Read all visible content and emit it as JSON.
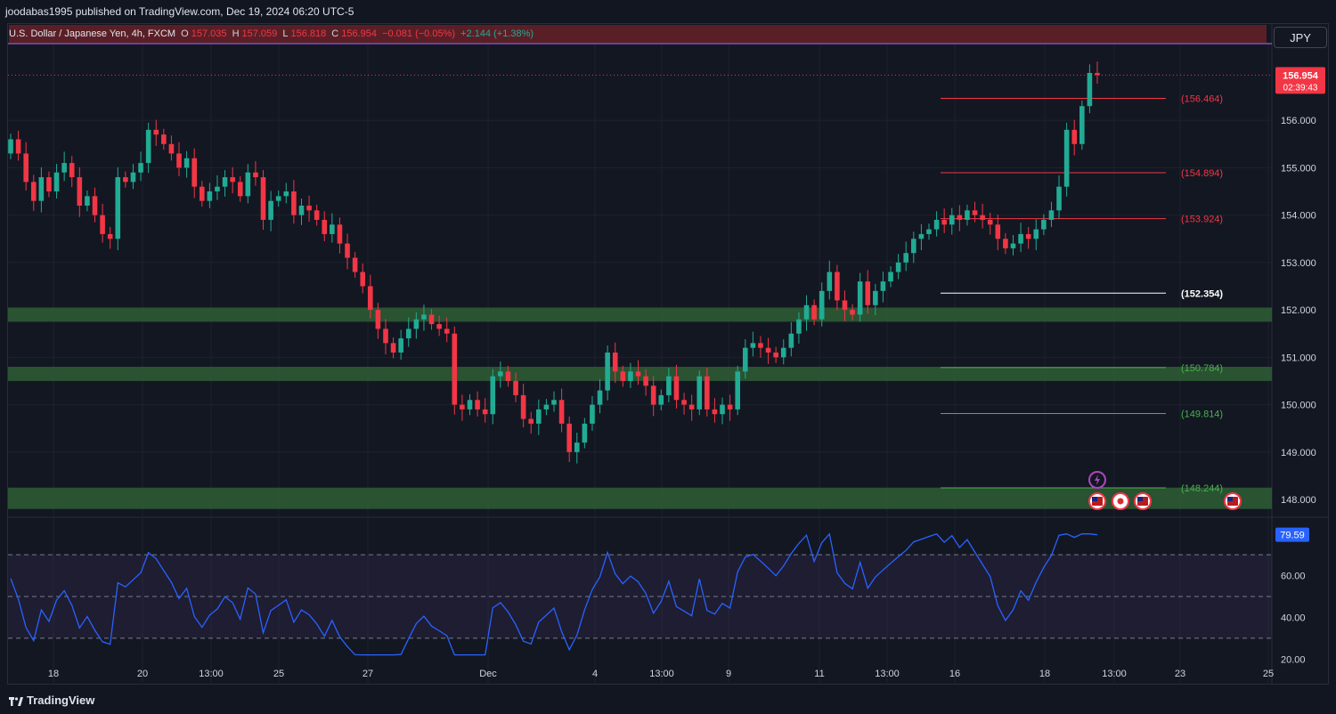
{
  "header": {
    "publish_text": "joodabas1995 published on TradingView.com, Dec 19, 2024 06:20 UTC-5"
  },
  "legend": {
    "symbol": "U.S. Dollar / Japanese Yen, 4h, FXCM",
    "o_label": "O",
    "o_value": "157.035",
    "h_label": "H",
    "h_value": "157.059",
    "l_label": "L",
    "l_value": "156.818",
    "c_label": "C",
    "c_value": "156.954",
    "change": "−0.081 (−0.05%)",
    "change2": "+2.144 (+1.38%)"
  },
  "currency_button": "JPY",
  "price_badge": {
    "price": "156.954",
    "countdown": "02:39:43"
  },
  "rsi_badge": "79.59",
  "footer": {
    "brand": "TradingView"
  },
  "colors": {
    "up": "#22ab94",
    "down": "#f23645",
    "background": "#131722",
    "rsi_line": "#2962ff",
    "zone": "#2e5e34"
  },
  "chart_data": {
    "type": "candlestick",
    "symbol": "USDJPY",
    "interval": "4h",
    "ylim": [
      147.7,
      157.6
    ],
    "y_ticks": [
      "148.000",
      "149.000",
      "150.000",
      "151.000",
      "152.000",
      "153.000",
      "154.000",
      "155.000",
      "156.000"
    ],
    "x_ticks": [
      "18",
      "20",
      "13:00",
      "25",
      "27",
      "Dec",
      "4",
      "13:00",
      "9",
      "11",
      "13:00",
      "16",
      "18",
      "13:00",
      "23",
      "25"
    ],
    "candles_close": [
      155.6,
      155.3,
      154.7,
      154.3,
      154.8,
      154.5,
      154.9,
      155.1,
      154.8,
      154.2,
      154.4,
      154.0,
      153.6,
      153.5,
      154.8,
      154.7,
      154.9,
      155.1,
      155.8,
      155.7,
      155.5,
      155.3,
      155.0,
      155.2,
      154.6,
      154.3,
      154.5,
      154.6,
      154.8,
      154.7,
      154.4,
      154.9,
      154.8,
      153.9,
      154.3,
      154.4,
      154.5,
      154.0,
      154.2,
      154.1,
      153.9,
      153.6,
      153.8,
      153.4,
      153.1,
      152.8,
      152.5,
      152.0,
      151.6,
      151.3,
      151.1,
      151.4,
      151.6,
      151.8,
      151.9,
      151.7,
      151.6,
      151.5,
      150.0,
      149.9,
      150.1,
      149.9,
      149.8,
      150.6,
      150.7,
      150.5,
      150.2,
      149.7,
      149.6,
      149.9,
      150.0,
      150.1,
      149.6,
      149.0,
      149.2,
      149.6,
      150.0,
      150.3,
      151.1,
      150.7,
      150.5,
      150.7,
      150.6,
      150.4,
      150.0,
      150.2,
      150.6,
      150.1,
      150.0,
      149.9,
      150.6,
      149.9,
      149.8,
      150.0,
      149.9,
      150.7,
      151.2,
      151.3,
      151.2,
      151.1,
      151.0,
      151.2,
      151.5,
      151.8,
      152.1,
      151.8,
      152.4,
      152.8,
      152.2,
      152.0,
      151.9,
      152.6,
      152.1,
      152.4,
      152.6,
      152.8,
      153.0,
      153.2,
      153.5,
      153.6,
      153.7,
      153.9,
      153.8,
      154.0,
      153.9,
      154.1,
      154.0,
      153.9,
      153.8,
      153.5,
      153.3,
      153.4,
      153.6,
      153.5,
      153.7,
      153.9,
      154.1,
      154.6,
      155.8,
      155.5,
      156.3,
      157.0,
      156.954
    ],
    "levels": [
      {
        "label": "(156.464)",
        "value": 156.464,
        "color": "#f23645"
      },
      {
        "label": "(154.894)",
        "value": 154.894,
        "color": "#f23645"
      },
      {
        "label": "(153.924)",
        "value": 153.924,
        "color": "#f23645"
      },
      {
        "label": "(152.354)",
        "value": 152.354,
        "color": "#ffffff"
      },
      {
        "label": "(150.784)",
        "value": 150.784,
        "color": "#4caf50"
      },
      {
        "label": "(149.814)",
        "value": 149.814,
        "color": "#4caf50"
      },
      {
        "label": "(148.244)",
        "value": 148.244,
        "color": "#4caf50"
      }
    ],
    "zones": [
      {
        "from": 151.75,
        "to": 152.05
      },
      {
        "from": 150.5,
        "to": 150.8
      },
      {
        "from": 147.8,
        "to": 148.25
      }
    ],
    "rsi": {
      "ylim": [
        15,
        85
      ],
      "y_ticks": [
        "20.00",
        "40.00",
        "60.00"
      ],
      "levels": [
        30,
        50,
        70
      ],
      "last": 79.59
    }
  }
}
